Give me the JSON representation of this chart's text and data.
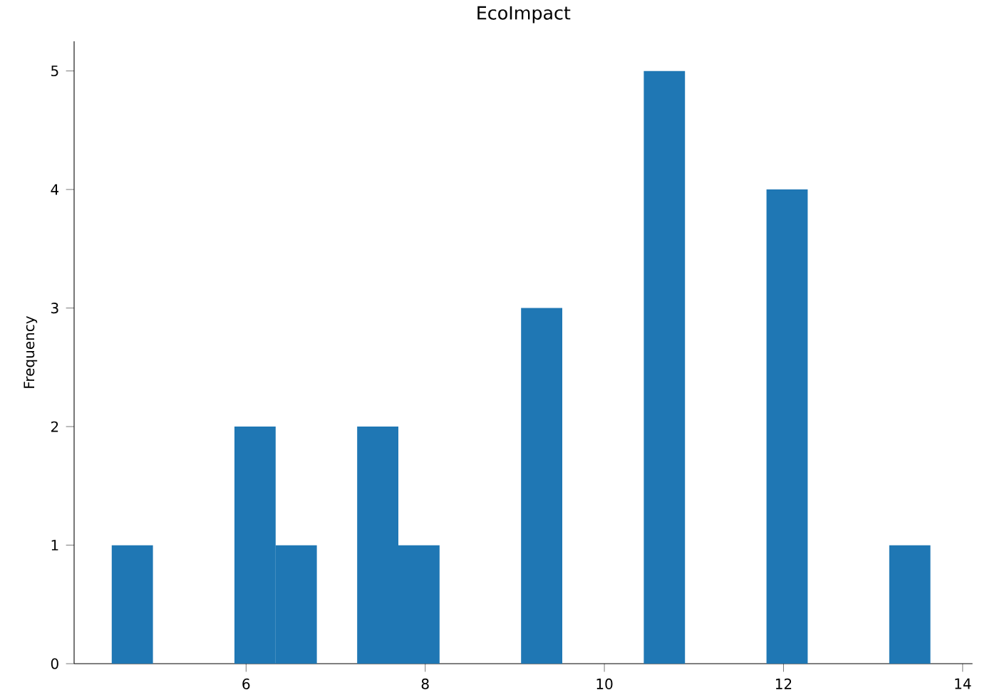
{
  "chart_data": {
    "type": "histogram",
    "title": "EcoImpact",
    "ylabel": "Frequency",
    "color": "#1f77b4",
    "bins": [
      4.5,
      4.96,
      5.87,
      6.33,
      6.79,
      7.24,
      7.7,
      8.16,
      9.07,
      9.53,
      10.44,
      10.9,
      11.81,
      12.27,
      13.18,
      13.64
    ],
    "values": [
      1,
      0,
      2,
      1,
      0,
      2,
      1,
      0,
      3,
      0,
      5,
      0,
      4,
      0,
      1
    ],
    "xlim": [
      4.08,
      14.11
    ],
    "ylim": [
      0,
      5.25
    ],
    "xticks": [
      6,
      8,
      10,
      12,
      14
    ],
    "yticks": [
      0,
      1,
      2,
      3,
      4,
      5
    ],
    "grid": false
  }
}
